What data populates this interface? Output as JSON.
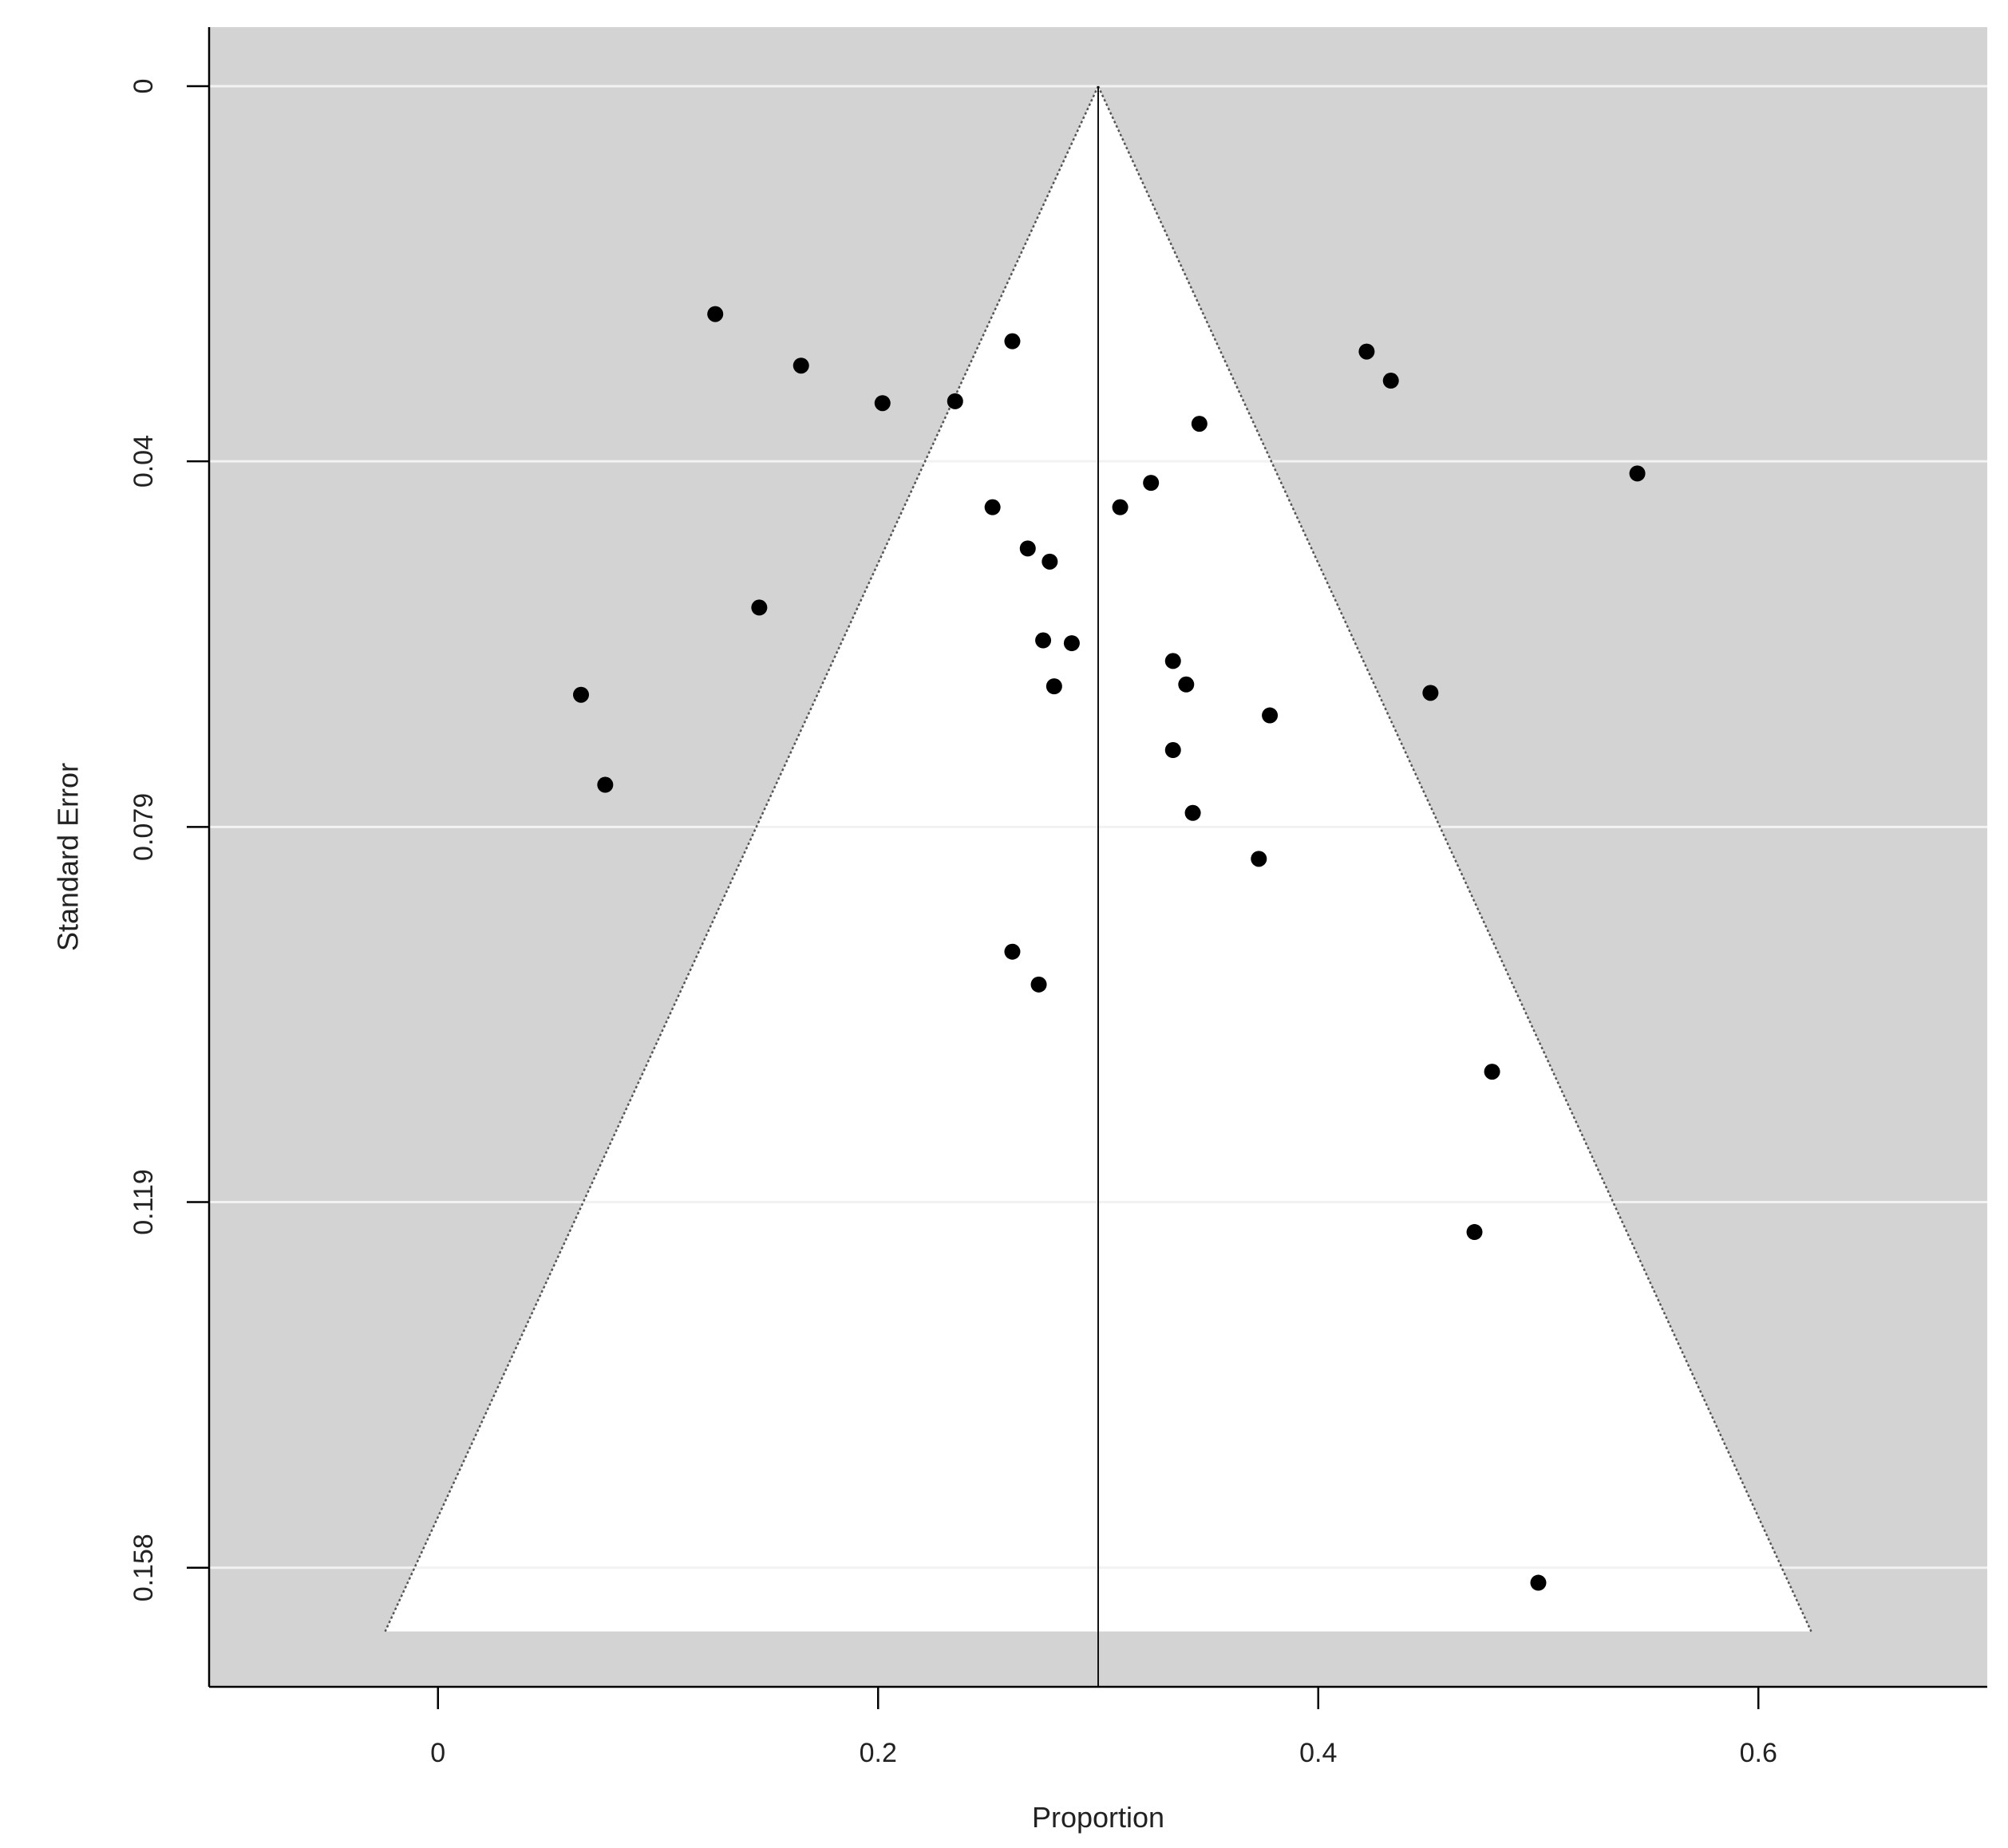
{
  "chart_data": {
    "type": "scatter",
    "title": "",
    "xlabel": "Proportion",
    "ylabel": "Standard Error",
    "xlim": [
      -0.104,
      0.704
    ],
    "ylim": [
      0.1707,
      -0.0063
    ],
    "y_reversed": true,
    "x_ticks": [
      0,
      0.2,
      0.4,
      0.6
    ],
    "x_tick_labels": [
      "0",
      "0.2",
      "0.4",
      "0.6"
    ],
    "y_ticks": [
      0,
      0.04,
      0.079,
      0.119,
      0.158
    ],
    "y_tick_labels": [
      "0",
      "0.04",
      "0.079",
      "0.119",
      "0.158"
    ],
    "grid": true,
    "reference_line_x": 0.3,
    "funnel": {
      "apex": [
        0.3,
        0
      ],
      "base_left": [
        -0.024,
        0.1648
      ],
      "base_right": [
        0.624,
        0.1648
      ]
    },
    "colors": {
      "background": "#d3d3d3",
      "funnel_fill": "#ffffff",
      "point": "#000000",
      "grid": "#f2f2f2",
      "axis": "#000000"
    },
    "points": [
      {
        "x": 0.126,
        "y": 0.0243
      },
      {
        "x": 0.165,
        "y": 0.0298
      },
      {
        "x": 0.202,
        "y": 0.0338
      },
      {
        "x": 0.235,
        "y": 0.0336
      },
      {
        "x": 0.261,
        "y": 0.0272
      },
      {
        "x": 0.422,
        "y": 0.0283
      },
      {
        "x": 0.433,
        "y": 0.0314
      },
      {
        "x": 0.346,
        "y": 0.036
      },
      {
        "x": 0.545,
        "y": 0.0413
      },
      {
        "x": 0.252,
        "y": 0.0449
      },
      {
        "x": 0.31,
        "y": 0.0449
      },
      {
        "x": 0.324,
        "y": 0.0423
      },
      {
        "x": 0.268,
        "y": 0.0493
      },
      {
        "x": 0.278,
        "y": 0.0507
      },
      {
        "x": 0.146,
        "y": 0.0556
      },
      {
        "x": 0.275,
        "y": 0.0591
      },
      {
        "x": 0.288,
        "y": 0.0594
      },
      {
        "x": 0.334,
        "y": 0.0613
      },
      {
        "x": 0.34,
        "y": 0.0638
      },
      {
        "x": 0.28,
        "y": 0.064
      },
      {
        "x": 0.065,
        "y": 0.0649
      },
      {
        "x": 0.451,
        "y": 0.0647
      },
      {
        "x": 0.378,
        "y": 0.0671
      },
      {
        "x": 0.334,
        "y": 0.0708
      },
      {
        "x": 0.076,
        "y": 0.0745
      },
      {
        "x": 0.343,
        "y": 0.0775
      },
      {
        "x": 0.373,
        "y": 0.0824
      },
      {
        "x": 0.261,
        "y": 0.0923
      },
      {
        "x": 0.273,
        "y": 0.0958
      },
      {
        "x": 0.479,
        "y": 0.1051
      },
      {
        "x": 0.471,
        "y": 0.1222
      },
      {
        "x": 0.5,
        "y": 0.1596
      }
    ]
  }
}
